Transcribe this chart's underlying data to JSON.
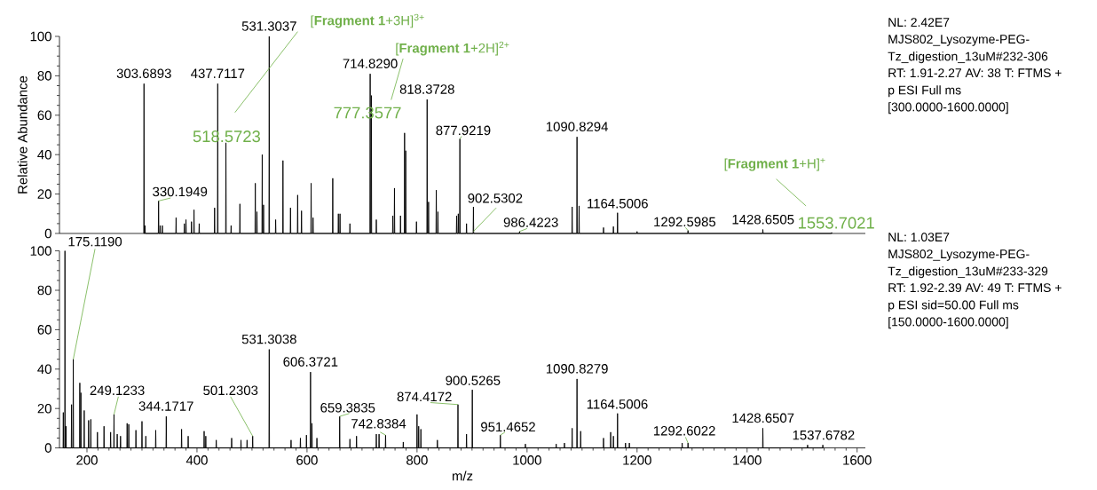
{
  "chart_data": [
    {
      "type": "line",
      "color": "#000000",
      "ylabel": "Relative Abundance",
      "xlim": [
        150,
        1615
      ],
      "ylim": [
        0,
        100
      ],
      "yticks": [
        0,
        20,
        40,
        60,
        80,
        100
      ],
      "tick_labels": "y",
      "x": [
        303.2,
        303.6893,
        304.2,
        305,
        305.5,
        306,
        329.7,
        330.1949,
        330.7,
        332.5,
        333,
        333.5,
        336.5,
        337,
        337.5,
        361.5,
        362,
        362.5,
        376.5,
        377,
        377.5,
        379.5,
        380,
        380.5,
        389.5,
        390,
        390.5,
        394.1,
        394.6,
        395.1,
        403.5,
        404,
        404.5,
        431.5,
        432,
        432.5,
        437.2,
        437.7117,
        438.2,
        452.1,
        452.6,
        453.1,
        461.5,
        462,
        462.5,
        477.5,
        478,
        478.5,
        505.5,
        506,
        506.5,
        508.5,
        509,
        509.5,
        518.1,
        518.5723,
        519.1,
        520.5,
        521,
        521.5,
        530.8,
        531.3037,
        531.8,
        542.5,
        543,
        543.5,
        555.8,
        556.267,
        556.8,
        569.5,
        570,
        570.5,
        582.5,
        583,
        583.5,
        589.5,
        590,
        590.5,
        607,
        607.5,
        608,
        610.5,
        611,
        611.5,
        646.3,
        646.8008,
        647.3,
        656.5,
        657,
        657.5,
        659.5,
        660,
        660.5,
        677.5,
        678,
        678.5,
        714.3,
        714.829,
        715.3,
        716.5,
        717,
        717.5,
        725.5,
        726,
        726.5,
        755.5,
        756,
        756.5,
        758.5,
        759,
        759.5,
        769.5,
        770,
        770.5,
        776.9,
        777.3577,
        777.9,
        779,
        779.5,
        780,
        798.5,
        799,
        799.5,
        817.9,
        818.3728,
        818.9,
        820.5,
        821,
        821.5,
        834.5,
        835,
        835.5,
        837.5,
        838,
        838.5,
        871.5,
        872,
        872.5,
        874.5,
        875,
        875.5,
        877.4,
        877.9219,
        878.4,
        889.5,
        890,
        890.5,
        902,
        902.5302,
        903,
        985.9,
        986.4223,
        986.9,
        1081.5,
        1082,
        1082.5,
        1090.3,
        1090.8294,
        1091.3,
        1094.1,
        1094.6,
        1095.1,
        1138.5,
        1139,
        1139.5,
        1156.5,
        1157,
        1157.5,
        1164,
        1164.5006,
        1165,
        1199.5,
        1200,
        1200.5,
        1292.1,
        1292.5985,
        1293.1,
        1428.2,
        1428.6505,
        1429.2,
        1553.2,
        1553.7021,
        1554.2
      ],
      "values": [
        0,
        76,
        0,
        0,
        4,
        0,
        0,
        16.5,
        0,
        0,
        4,
        0,
        0,
        4,
        0,
        0,
        8,
        0,
        0,
        5,
        0,
        0,
        7,
        0,
        0,
        6,
        0,
        0,
        12,
        0,
        0,
        5,
        0,
        0,
        13,
        0,
        0,
        76,
        0,
        0,
        46,
        0,
        0,
        4,
        0,
        0,
        15,
        0,
        0,
        25.5,
        0,
        0,
        11,
        0,
        0,
        40,
        0,
        0,
        14.5,
        0,
        0,
        100,
        0,
        0,
        7,
        0,
        0,
        37,
        0,
        0,
        13,
        0,
        0,
        19.5,
        0,
        0,
        11.5,
        0,
        0,
        25.5,
        0,
        0,
        8,
        0,
        0,
        28,
        0,
        0,
        10,
        0,
        0,
        10,
        0,
        0,
        5,
        0,
        0,
        81,
        0,
        0,
        70,
        0,
        0,
        7,
        0,
        0,
        9,
        0,
        0,
        23,
        0,
        0,
        9,
        0,
        0,
        51,
        0,
        0,
        42,
        0,
        0,
        6,
        0,
        0,
        68,
        0,
        0,
        16,
        0,
        0,
        22,
        0,
        0,
        11,
        0,
        0,
        9,
        0,
        0,
        10,
        0,
        0,
        48,
        0,
        0,
        5,
        0,
        0,
        13.5,
        0,
        0,
        1,
        0,
        0,
        13.5,
        0,
        0,
        49,
        0,
        0,
        14,
        0,
        0,
        3,
        0,
        0,
        3.5,
        0,
        0,
        10.5,
        0,
        0,
        1,
        0,
        0,
        1.5,
        0,
        0,
        2,
        0,
        0,
        0.5,
        0
      ],
      "annotations": [
        {
          "text": "303.6893",
          "x": 303.6893,
          "y": 76
        },
        {
          "text": "330.1949",
          "x": 330.1949,
          "y": 16.5
        },
        {
          "text": "437.7117",
          "x": 437.7117,
          "y": 76
        },
        {
          "text": "518.5723",
          "x": 518.5723,
          "y": 40
        },
        {
          "text": "531.3037",
          "x": 531.3037,
          "y": 100
        },
        "[**Fragment 1**+3H]$^{3+}$",
        {
          "text": "714.8290",
          "x": 714.829,
          "y": 81
        },
        "[**Fragment 1**+2H]$^{2+}$",
        {
          "text": "777.3577",
          "x": 777.3577,
          "y": 51
        },
        {
          "text": "818.3728",
          "x": 818.3728,
          "y": 68
        },
        {
          "text": "877.9219",
          "x": 877.9219,
          "y": 48
        },
        {
          "text": "902.5302",
          "x": 902.5302,
          "y": 13.5
        },
        {
          "text": "986.4223",
          "x": 986.4223,
          "y": 1
        },
        {
          "text": "1090.8294",
          "x": 1090.8294,
          "y": 49
        },
        {
          "text": "1164.5006",
          "x": 1164.5006,
          "y": 10.5
        },
        {
          "text": "1292.5985",
          "x": 1292.5985,
          "y": 1.5
        },
        {
          "text": "1428.6505",
          "x": 1428.6505,
          "y": 2
        },
        "[**Fragment 1**+H]$^{+}$",
        {
          "text": "1553.7021",
          "x": 1553.7021,
          "y": 0.5
        },
        "NL: 2.42E7",
        "MJS802_Lysozyme-PEG-",
        "Tz_digestion_13uM#232-306",
        "RT: 1.91-2.27  AV: 38 T: FTMS +",
        "p ESI Full ms",
        "[300.0000-1600.0000]"
      ]
    },
    {
      "type": "line",
      "color": "#000000",
      "xlabel": "m/z",
      "xlim": [
        150,
        1615
      ],
      "ylim": [
        0,
        100
      ],
      "xticks": [
        200,
        400,
        600,
        800,
        1000,
        1200,
        1400,
        1600
      ],
      "yticks": [
        0,
        20,
        40,
        60,
        80,
        100
      ],
      "x": [
        156.6,
        157,
        157.4,
        159.6,
        160,
        160.4,
        161.6,
        162,
        162.4,
        171.5,
        172,
        172.5,
        174.6,
        175.119,
        175.6,
        186.6,
        187,
        187.4,
        188.6,
        189,
        189.4,
        194.5,
        195,
        195.5,
        202.5,
        203,
        203.5,
        206.5,
        207,
        207.5,
        218.5,
        219,
        219.5,
        230.5,
        231,
        231.5,
        242.5,
        243,
        243.5,
        248.6,
        249.1233,
        249.6,
        254.5,
        255,
        255.5,
        260.5,
        261,
        261.5,
        272.5,
        273,
        273.5,
        275.5,
        276,
        276.5,
        288.5,
        289,
        289.5,
        299.5,
        300,
        300.5,
        306.5,
        307,
        307.5,
        324.5,
        325,
        325.5,
        343.7,
        344.1717,
        344.7,
        371.5,
        372,
        372.5,
        383.5,
        384,
        384.5,
        412.5,
        413,
        413.5,
        415.5,
        416,
        416.5,
        434.5,
        435,
        435.5,
        462.5,
        463,
        463.5,
        479.5,
        480,
        480.5,
        490.5,
        491,
        491.5,
        500.7,
        501.2303,
        501.7,
        530.8,
        531.3038,
        531.8,
        570.5,
        571,
        571.5,
        587.5,
        588,
        588.5,
        598.5,
        599,
        599.5,
        605.9,
        606.3721,
        606.9,
        608.5,
        609,
        609.5,
        617.5,
        618,
        618.5,
        658.9,
        659.3835,
        659.9,
        677.5,
        678,
        678.5,
        689.5,
        690,
        690.5,
        725.5,
        726,
        726.5,
        730.5,
        731,
        731.5,
        742.3,
        742.8384,
        743.3,
        774.5,
        775,
        775.5,
        799.5,
        800,
        800.5,
        802.5,
        803,
        803.5,
        806.5,
        807,
        807.5,
        836.5,
        837,
        837.5,
        873.9,
        874.4172,
        874.9,
        889.5,
        890,
        890.5,
        900,
        900.5265,
        901,
        951,
        951.4652,
        952,
        996.5,
        997,
        997.5,
        1052.5,
        1053,
        1053.5,
        1067.5,
        1068,
        1068.5,
        1081.5,
        1082,
        1082.5,
        1090.3,
        1090.8279,
        1091.3,
        1097,
        1097.5,
        1098,
        1138.5,
        1139,
        1139.5,
        1151.5,
        1152,
        1152.5,
        1156.5,
        1157,
        1157.5,
        1164,
        1164.5006,
        1165,
        1178.5,
        1179,
        1179.5,
        1185.5,
        1186,
        1186.5,
        1281.5,
        1282,
        1282.5,
        1292.1,
        1292.6022,
        1293.1,
        1428.2,
        1428.6507,
        1429.2,
        1509.5,
        1510,
        1510.5,
        1537.2,
        1537.6782,
        1538.2
      ],
      "values": [
        0,
        18,
        0,
        0,
        100,
        0,
        0,
        11,
        0,
        0,
        22,
        0,
        0,
        45,
        0,
        0,
        33,
        0,
        0,
        28,
        0,
        0,
        19,
        0,
        0,
        14,
        0,
        0,
        14.5,
        0,
        0,
        8,
        0,
        0,
        11,
        0,
        0,
        8,
        0,
        0,
        17,
        0,
        0,
        7,
        0,
        0,
        6,
        0,
        0,
        12.5,
        0,
        0,
        12,
        0,
        0,
        9,
        0,
        0,
        13.5,
        0,
        0,
        6,
        0,
        0,
        9,
        0,
        0,
        16,
        0,
        0,
        9.5,
        0,
        0,
        6,
        0,
        0,
        8.5,
        0,
        0,
        6,
        0,
        0,
        4,
        0,
        0,
        5,
        0,
        0,
        4,
        0,
        0,
        4,
        0,
        0,
        6,
        0,
        0,
        50,
        0,
        0,
        4,
        0,
        0,
        5,
        0,
        0,
        6.5,
        0,
        0,
        38.5,
        0,
        0,
        12.5,
        0,
        0,
        5,
        0,
        0,
        16,
        0,
        0,
        4.5,
        0,
        0,
        6,
        0,
        0,
        7,
        0,
        0,
        7,
        0,
        0,
        6.5,
        0,
        0,
        3,
        0,
        0,
        17,
        0,
        0,
        11,
        0,
        0,
        9.5,
        0,
        0,
        4,
        0,
        0,
        22,
        0,
        0,
        7,
        0,
        0,
        29.5,
        0,
        0,
        6.5,
        0,
        0,
        2,
        0,
        0,
        2,
        0,
        0,
        2.5,
        0,
        0,
        10,
        0,
        0,
        35,
        0,
        0,
        8.5,
        0,
        0,
        5,
        0,
        0,
        8,
        0,
        0,
        6,
        0,
        0,
        17.5,
        0,
        0,
        2.5,
        0,
        0,
        2.5,
        0,
        0,
        2.5,
        0,
        0,
        2.5,
        0,
        0,
        10,
        0,
        0,
        1.5,
        0,
        0,
        1.5,
        0
      ],
      "annotations": [
        {
          "text": "175.1190",
          "x": 175.119,
          "y": 45
        },
        {
          "text": "249.1233",
          "x": 249.1233,
          "y": 17
        },
        {
          "text": "344.1717",
          "x": 344.1717,
          "y": 16
        },
        {
          "text": "501.2303",
          "x": 501.2303,
          "y": 6
        },
        {
          "text": "531.3038",
          "x": 531.3038,
          "y": 50
        },
        {
          "text": "606.3721",
          "x": 606.3721,
          "y": 38.5
        },
        {
          "text": "659.3835",
          "x": 659.3835,
          "y": 16
        },
        {
          "text": "742.8384",
          "x": 742.8384,
          "y": 6.5
        },
        {
          "text": "874.4172",
          "x": 874.4172,
          "y": 22
        },
        {
          "text": "900.5265",
          "x": 900.5265,
          "y": 29.5
        },
        {
          "text": "951.4652",
          "x": 951.4652,
          "y": 6.5
        },
        {
          "text": "1090.8279",
          "x": 1090.8279,
          "y": 35
        },
        {
          "text": "1164.5006",
          "x": 1164.5006,
          "y": 17.5
        },
        {
          "text": "1292.6022",
          "x": 1292.6022,
          "y": 2.5
        },
        {
          "text": "1428.6507",
          "x": 1428.6507,
          "y": 10
        },
        {
          "text": "1537.6782",
          "x": 1537.6782,
          "y": 1.5
        },
        "NL: 1.03E7",
        "MJS802_Lysozyme-PEG-",
        "Tz_digestion_13uM#233-329",
        "RT: 1.92-2.39  AV: 49 T: FTMS +",
        "p ESI sid=50.00  Full ms",
        "[150.0000-1600.0000]"
      ]
    }
  ]
}
